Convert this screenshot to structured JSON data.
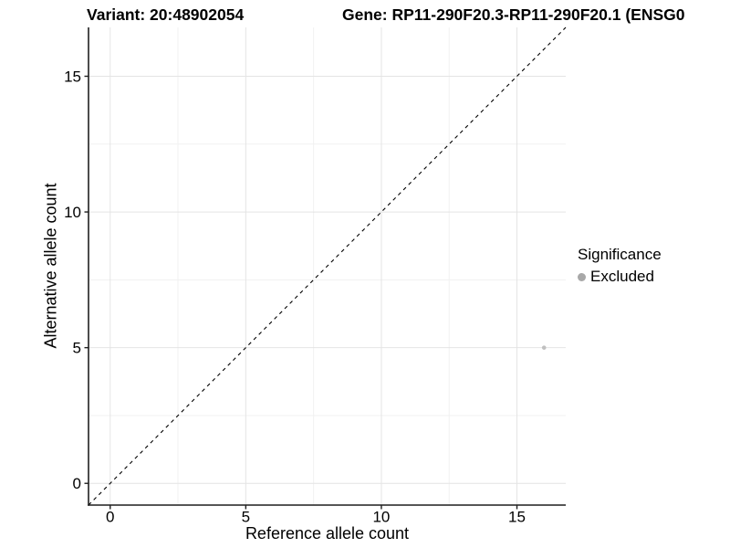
{
  "titles": {
    "variant": "Variant: 20:48902054",
    "gene": "Gene: RP11-290F20.3-RP11-290F20.1 (ENSG0"
  },
  "chart_data": {
    "type": "scatter",
    "xlabel": "Reference allele count",
    "ylabel": "Alternative allele count",
    "xlim": [
      -0.8,
      16.8
    ],
    "ylim": [
      -0.8,
      16.8
    ],
    "xticks": [
      0,
      5,
      10,
      15
    ],
    "yticks": [
      0,
      5,
      10,
      15
    ],
    "minor_xticks": [
      2.5,
      7.5,
      12.5
    ],
    "minor_yticks": [
      2.5,
      7.5,
      12.5
    ],
    "grid": true,
    "identity_line": {
      "style": "dashed",
      "from": [
        -0.8,
        -0.8
      ],
      "to": [
        16.8,
        16.8
      ],
      "color": "#000000"
    },
    "series": [
      {
        "name": "Excluded",
        "color": "#c0c0c0",
        "points": [
          {
            "x": 16,
            "y": 5
          }
        ]
      }
    ],
    "legend": {
      "title": "Significance",
      "position": "right",
      "items": [
        {
          "label": "Excluded",
          "color": "#a8a8a8"
        }
      ]
    }
  },
  "colors": {
    "background": "#ffffff",
    "grid_major": "#e4e4e4",
    "grid_minor": "#f1f1f1",
    "axis_line": "#1f1f1f",
    "tick_text": "#000000"
  }
}
